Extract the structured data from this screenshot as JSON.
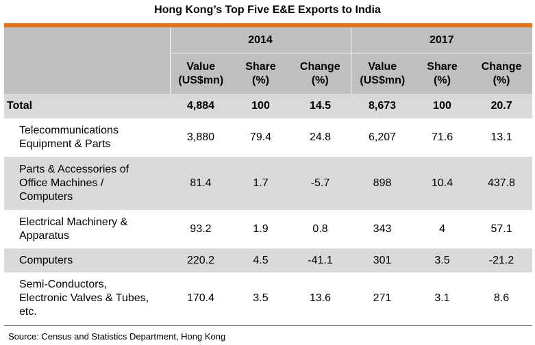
{
  "title": "Hong Kong’s Top Five E&E Exports to India",
  "years": [
    "2014",
    "2017"
  ],
  "columns": {
    "value": [
      "Value",
      "(US$mn)"
    ],
    "share": [
      "Share",
      "(%)"
    ],
    "change": [
      "Change",
      "(%)"
    ]
  },
  "total": {
    "label": "Total",
    "cells": [
      "4,884",
      "100",
      "14.5",
      "8,673",
      "100",
      "20.7"
    ]
  },
  "rows": [
    {
      "label": [
        "Telecommunications",
        "Equipment & Parts"
      ],
      "cells": [
        "3,880",
        "79.4",
        "24.8",
        "6,207",
        "71.6",
        "13.1"
      ]
    },
    {
      "label": [
        "Parts & Accessories of",
        "Office Machines /",
        "Computers"
      ],
      "cells": [
        "81.4",
        "1.7",
        "-5.7",
        "898",
        "10.4",
        "437.8"
      ]
    },
    {
      "label": [
        "Electrical Machinery &",
        "Apparatus"
      ],
      "cells": [
        "93.2",
        "1.9",
        "0.8",
        "343",
        "4",
        "57.1"
      ]
    },
    {
      "label": [
        "Computers"
      ],
      "cells": [
        "220.2",
        "4.5",
        "-41.1",
        "301",
        "3.5",
        "-21.2"
      ]
    },
    {
      "label": [
        "Semi-Conductors,",
        "Electronic Valves & Tubes,",
        "etc."
      ],
      "cells": [
        "170.4",
        "3.5",
        "13.6",
        "271",
        "3.1",
        "8.6"
      ]
    }
  ],
  "source": "Source: Census and Statistics Department, Hong Kong",
  "colors": {
    "accent": "#e3701b",
    "header": "#bfbfbf",
    "shade": "#d9d9d9"
  }
}
